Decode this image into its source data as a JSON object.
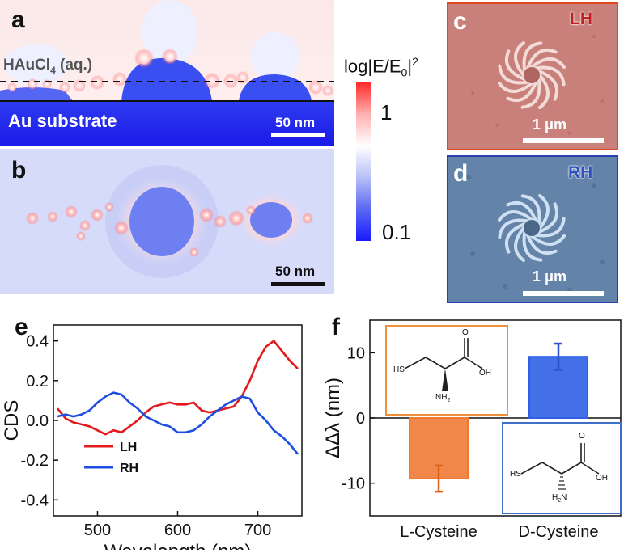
{
  "panels": {
    "a": {
      "letter": "a",
      "medium_label": "HAuCl",
      "medium_sub": "4",
      "medium_suffix": " (aq.)",
      "substrate_label": "Au substrate",
      "scale_bar": "50 nm"
    },
    "b": {
      "letter": "b",
      "scale_bar": "50 nm"
    },
    "colorbar": {
      "title_main": "log|E/E",
      "title_sub": "0",
      "title_end": "|",
      "title_sup": "2",
      "tick_high": "1",
      "tick_low": "0.1",
      "colors": {
        "high": "#ff2020",
        "mid": "#ffffff",
        "low": "#1a1aff"
      }
    },
    "c": {
      "letter": "c",
      "tag": "LH",
      "scale_bar": "1 μm",
      "border_color": "#e04a1e"
    },
    "d": {
      "letter": "d",
      "tag": "RH",
      "scale_bar": "1 μm",
      "border_color": "#2a3fb0"
    },
    "e": {
      "letter": "e"
    },
    "f": {
      "letter": "f",
      "molecule_l": {
        "sh": "HS",
        "oh": "OH",
        "nh2": "NH",
        "nh2_sub": "2",
        "o": "O"
      },
      "molecule_d": {
        "sh": "HS",
        "oh": "OH",
        "nh2": "H",
        "nh2_sub": "2",
        "nh2_end": "N",
        "o": "O"
      }
    }
  },
  "chart_data": [
    {
      "type": "line",
      "panel": "e",
      "xlabel": "Wavelength (nm)",
      "ylabel": "CDS",
      "xlim": [
        445,
        755
      ],
      "ylim": [
        -0.48,
        0.48
      ],
      "xticks": [
        "500",
        "600",
        "700"
      ],
      "yticks": [
        "0.4",
        "0.2",
        "0.0",
        "-0.2",
        "-0.4"
      ],
      "x": [
        450,
        460,
        470,
        480,
        490,
        500,
        510,
        520,
        530,
        540,
        550,
        560,
        570,
        580,
        590,
        600,
        610,
        620,
        630,
        640,
        650,
        660,
        670,
        680,
        690,
        700,
        710,
        720,
        730,
        740,
        750
      ],
      "series": [
        {
          "name": "LH",
          "color": "#e31a1c",
          "values": [
            0.06,
            0.01,
            -0.01,
            -0.02,
            -0.03,
            -0.05,
            -0.07,
            -0.05,
            -0.06,
            -0.03,
            0.0,
            0.04,
            0.07,
            0.08,
            0.09,
            0.08,
            0.08,
            0.09,
            0.05,
            0.04,
            0.05,
            0.06,
            0.07,
            0.12,
            0.2,
            0.3,
            0.37,
            0.4,
            0.35,
            0.3,
            0.26
          ]
        },
        {
          "name": "RH",
          "color": "#1f4fe0",
          "values": [
            0.02,
            0.03,
            0.02,
            0.03,
            0.05,
            0.09,
            0.12,
            0.14,
            0.13,
            0.09,
            0.06,
            0.02,
            0.0,
            -0.02,
            -0.03,
            -0.06,
            -0.06,
            -0.05,
            -0.02,
            0.02,
            0.05,
            0.08,
            0.1,
            0.12,
            0.11,
            0.04,
            0.0,
            -0.05,
            -0.08,
            -0.12,
            -0.17
          ]
        }
      ],
      "legend": "lower-left"
    },
    {
      "type": "bar",
      "panel": "f",
      "categories": [
        "L-Cysteine",
        "D-Cysteine"
      ],
      "values": [
        -9.3,
        9.4
      ],
      "errors": [
        2.0,
        2.0
      ],
      "colors": [
        "#f07a34",
        "#2f5fe6"
      ],
      "ylabel": "ΔΔλ (nm)",
      "ylim": [
        -15,
        15
      ],
      "yticks": [
        "10",
        "0",
        "-10"
      ]
    }
  ]
}
